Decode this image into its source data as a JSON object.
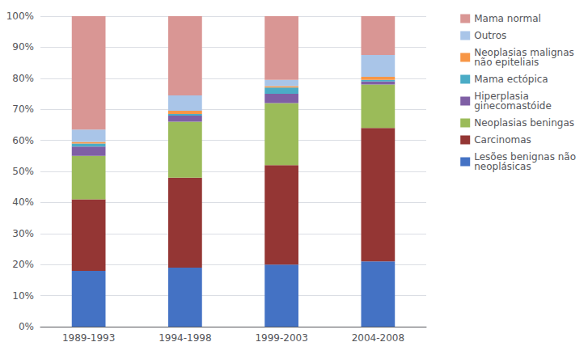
{
  "chart_data": {
    "type": "bar",
    "stacked": true,
    "categories": [
      "1989-1993",
      "1994-1998",
      "1999-2003",
      "2004-2008"
    ],
    "series": [
      {
        "name": "Lesões benignas não\nneoplásicas",
        "color": "#4472C4",
        "values": [
          18,
          19,
          20,
          21
        ]
      },
      {
        "name": "Carcinomas",
        "color": "#943634",
        "values": [
          23,
          29,
          32,
          43
        ]
      },
      {
        "name": "Neoplasias beningas",
        "color": "#9BBB59",
        "values": [
          14,
          18,
          20,
          14
        ]
      },
      {
        "name": "Hiperplasia\nginecomastóide",
        "color": "#7F5FA5",
        "values": [
          3,
          2,
          3,
          1
        ]
      },
      {
        "name": "Mama ectópica",
        "color": "#4BACC6",
        "values": [
          1,
          0.5,
          2,
          0.5
        ]
      },
      {
        "name": "Neoplasias malignas\nnão epiteliais",
        "color": "#F79646",
        "values": [
          0.5,
          1,
          0.5,
          1
        ]
      },
      {
        "name": "Outros",
        "color": "#A9C5E8",
        "values": [
          4,
          5,
          2,
          7
        ]
      },
      {
        "name": "Mama normal",
        "color": "#D99694",
        "values": [
          36.5,
          25.5,
          20.5,
          12.5
        ]
      }
    ],
    "ylim": [
      0,
      100
    ],
    "yticks": [
      {
        "value": 0,
        "label": "0%"
      },
      {
        "value": 10,
        "label": "10%"
      },
      {
        "value": 20,
        "label": "20%"
      },
      {
        "value": 30,
        "label": "30%"
      },
      {
        "value": 40,
        "label": "40%"
      },
      {
        "value": 50,
        "label": "50%"
      },
      {
        "value": 60,
        "label": "60%"
      },
      {
        "value": 70,
        "label": "70%"
      },
      {
        "value": 80,
        "label": "80%"
      },
      {
        "value": 90,
        "label": "90%"
      },
      {
        "value": 100,
        "label": "100%"
      }
    ],
    "grid": true,
    "legend": "right"
  }
}
